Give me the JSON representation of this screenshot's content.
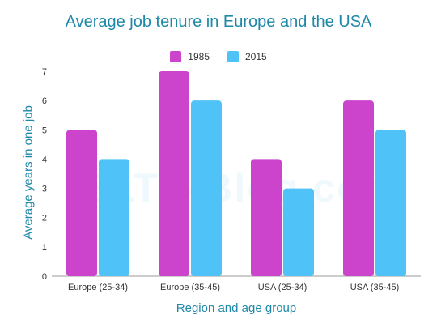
{
  "watermark": "IELTS-Blog.com",
  "colors": {
    "series_1985": "#cc44cc",
    "series_2015": "#4fc3f7",
    "title": "#1e88a8"
  },
  "chart_data": {
    "type": "bar",
    "title": "Average job tenure in Europe and the USA",
    "xlabel": "Region and age group",
    "ylabel": "Average years in one job",
    "categories": [
      "Europe (25-34)",
      "Europe (35-45)",
      "USA (25-34)",
      "USA (35-45)"
    ],
    "series": [
      {
        "name": "1985",
        "values": [
          5,
          7,
          4,
          6
        ]
      },
      {
        "name": "2015",
        "values": [
          4,
          6,
          3,
          5
        ]
      }
    ],
    "ylim": [
      0,
      7
    ],
    "yticks": [
      0,
      1,
      2,
      3,
      4,
      5,
      6,
      7
    ],
    "grid": false,
    "legend_position": "top-center"
  }
}
